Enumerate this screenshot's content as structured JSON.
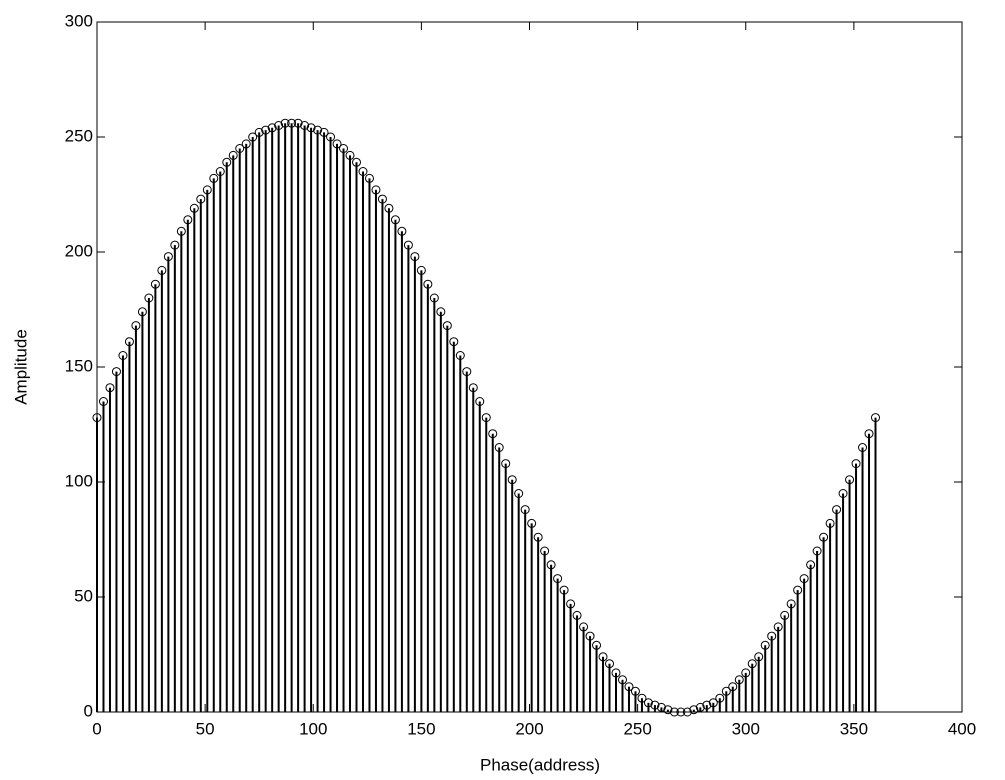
{
  "chart_data": {
    "type": "stem",
    "x_label": "Phase(address)",
    "y_label": "Amplitude",
    "color": "#000000",
    "xlim": [
      0,
      400
    ],
    "xticks": [
      0,
      50,
      100,
      150,
      200,
      250,
      300,
      350,
      400
    ],
    "ylim": [
      0,
      300
    ],
    "yticks": [
      0,
      50,
      100,
      150,
      200,
      250,
      300
    ],
    "grid": false,
    "x": [
      0,
      3,
      6,
      9,
      12,
      15,
      18,
      21,
      24,
      27,
      30,
      33,
      36,
      39,
      42,
      45,
      48,
      51,
      54,
      57,
      60,
      63,
      66,
      69,
      72,
      75,
      78,
      81,
      84,
      87,
      90,
      93,
      96,
      99,
      102,
      105,
      108,
      111,
      114,
      117,
      120,
      123,
      126,
      129,
      132,
      135,
      138,
      141,
      144,
      147,
      150,
      153,
      156,
      159,
      162,
      165,
      168,
      171,
      174,
      177,
      180,
      183,
      186,
      189,
      192,
      195,
      198,
      201,
      204,
      207,
      210,
      213,
      216,
      219,
      222,
      225,
      228,
      231,
      234,
      237,
      240,
      243,
      246,
      249,
      252,
      255,
      258,
      261,
      264,
      267,
      270,
      273,
      276,
      279,
      282,
      285,
      288,
      291,
      294,
      297,
      300,
      303,
      306,
      309,
      312,
      315,
      318,
      321,
      324,
      327,
      330,
      333,
      336,
      339,
      342,
      345,
      348,
      351,
      354,
      357,
      360
    ],
    "values": [
      128,
      135,
      141,
      148,
      155,
      161,
      168,
      174,
      180,
      186,
      192,
      198,
      203,
      209,
      214,
      219,
      223,
      227,
      232,
      235,
      239,
      242,
      245,
      247,
      250,
      252,
      253,
      254,
      255,
      256,
      256,
      256,
      255,
      254,
      253,
      252,
      250,
      247,
      245,
      242,
      239,
      235,
      232,
      227,
      223,
      219,
      214,
      209,
      203,
      198,
      192,
      186,
      180,
      174,
      168,
      161,
      155,
      148,
      141,
      135,
      128,
      121,
      115,
      108,
      101,
      95,
      88,
      82,
      76,
      70,
      64,
      58,
      53,
      47,
      42,
      37,
      33,
      29,
      24,
      21,
      17,
      14,
      11,
      9,
      6,
      4,
      3,
      2,
      1,
      0,
      0,
      0,
      1,
      2,
      3,
      4,
      6,
      9,
      11,
      14,
      17,
      21,
      24,
      29,
      33,
      37,
      42,
      47,
      53,
      58,
      64,
      70,
      76,
      82,
      88,
      95,
      101,
      108,
      115,
      121,
      128
    ]
  }
}
